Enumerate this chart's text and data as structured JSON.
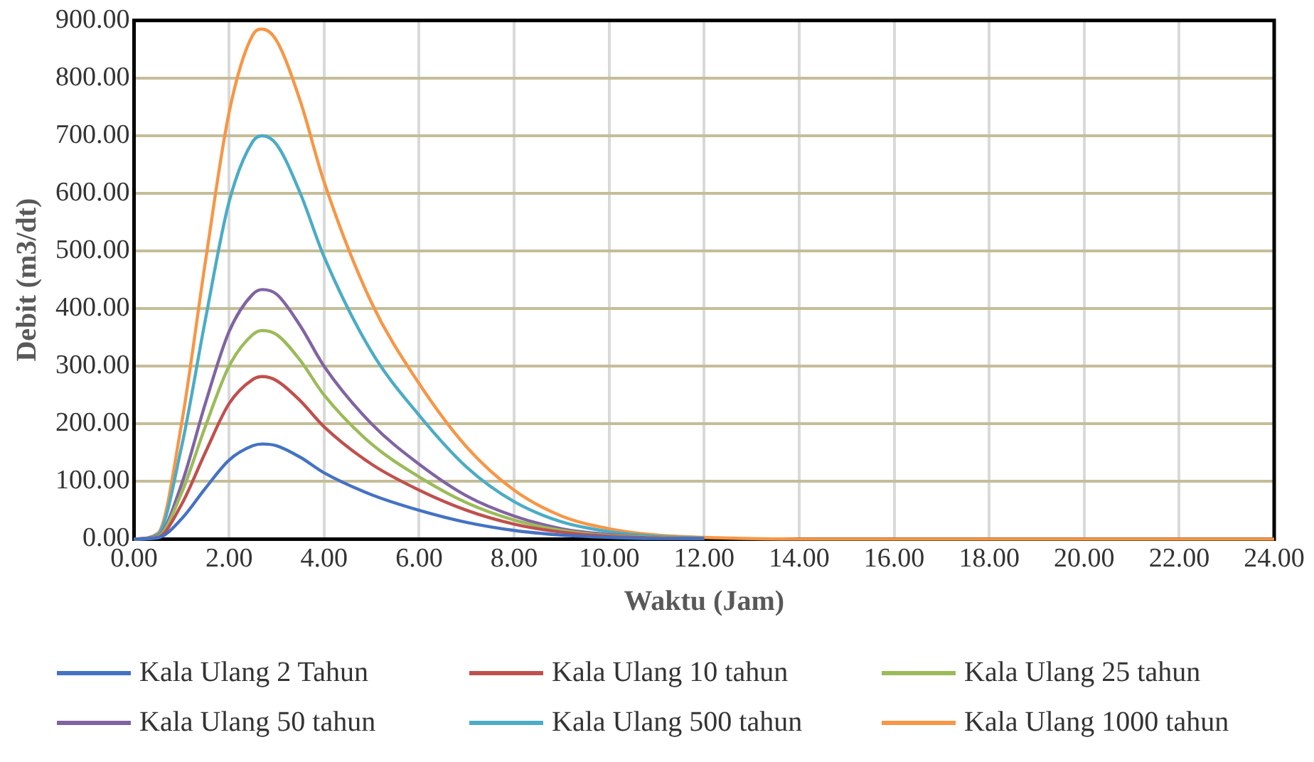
{
  "chart_data": {
    "type": "line",
    "xlabel": "Waktu (Jam)",
    "ylabel": "Debit (m3/dt)",
    "xlim": [
      0,
      24
    ],
    "ylim": [
      0,
      900
    ],
    "xticks": [
      {
        "value": 0,
        "label": "0.00"
      },
      {
        "value": 2,
        "label": "2.00"
      },
      {
        "value": 4,
        "label": "4.00"
      },
      {
        "value": 6,
        "label": "6.00"
      },
      {
        "value": 8,
        "label": "8.00"
      },
      {
        "value": 10,
        "label": "10.00"
      },
      {
        "value": 12,
        "label": "12.00"
      },
      {
        "value": 14,
        "label": "14.00"
      },
      {
        "value": 16,
        "label": "16.00"
      },
      {
        "value": 18,
        "label": "18.00"
      },
      {
        "value": 20,
        "label": "20.00"
      },
      {
        "value": 22,
        "label": "22.00"
      },
      {
        "value": 24,
        "label": "24.00"
      }
    ],
    "yticks": [
      {
        "value": 0,
        "label": "0.00"
      },
      {
        "value": 100,
        "label": "100.00"
      },
      {
        "value": 200,
        "label": "200.00"
      },
      {
        "value": 300,
        "label": "300.00"
      },
      {
        "value": 400,
        "label": "400.00"
      },
      {
        "value": 500,
        "label": "500.00"
      },
      {
        "value": 600,
        "label": "600.00"
      },
      {
        "value": 700,
        "label": "700.00"
      },
      {
        "value": 800,
        "label": "800.00"
      },
      {
        "value": 900,
        "label": "900.00"
      }
    ],
    "x": [
      0,
      0.5,
      1,
      1.5,
      2,
      2.5,
      2.7,
      3,
      3.5,
      4,
      5,
      6,
      7,
      8,
      9,
      10,
      11,
      12,
      14,
      16,
      18,
      20,
      22,
      24
    ],
    "grid": true,
    "legend": "bottom",
    "marker": "none",
    "line_style": "solid",
    "series": [
      {
        "name": "Kala Ulang 2 Tahun",
        "color": "#4472c4",
        "values": [
          0,
          2,
          35,
          88,
          137,
          162,
          165,
          162,
          142,
          115,
          77,
          50,
          29,
          15,
          7,
          3,
          1,
          1,
          null,
          null,
          null,
          null,
          null,
          null
        ]
      },
      {
        "name": "Kala Ulang 10 tahun",
        "color": "#c0504d",
        "values": [
          0,
          3,
          60,
          150,
          235,
          277,
          282,
          275,
          240,
          195,
          130,
          85,
          50,
          26,
          12,
          5,
          2,
          1,
          null,
          null,
          null,
          null,
          null,
          null
        ]
      },
      {
        "name": "Kala Ulang 25 tahun",
        "color": "#9bbb59",
        "values": [
          0,
          4,
          80,
          195,
          300,
          355,
          362,
          355,
          310,
          250,
          165,
          108,
          63,
          33,
          15,
          6,
          3,
          1,
          null,
          null,
          null,
          null,
          null,
          null
        ]
      },
      {
        "name": "Kala Ulang 50 tahun",
        "color": "#8064a2",
        "values": [
          0,
          5,
          95,
          235,
          360,
          425,
          433,
          425,
          370,
          300,
          200,
          130,
          75,
          40,
          18,
          8,
          3,
          1,
          null,
          null,
          null,
          null,
          null,
          null
        ]
      },
      {
        "name": "Kala Ulang 500 tahun",
        "color": "#4bacc6",
        "values": [
          0,
          8,
          160,
          380,
          585,
          690,
          700,
          685,
          600,
          490,
          325,
          215,
          125,
          65,
          30,
          13,
          5,
          2,
          null,
          null,
          null,
          null,
          null,
          null
        ]
      },
      {
        "name": "Kala Ulang 1000 tahun",
        "color": "#f79646",
        "values": [
          0,
          10,
          200,
          480,
          740,
          875,
          885,
          865,
          760,
          620,
          410,
          270,
          160,
          85,
          40,
          18,
          7,
          3,
          0,
          0,
          0,
          0,
          0,
          0
        ]
      }
    ]
  }
}
